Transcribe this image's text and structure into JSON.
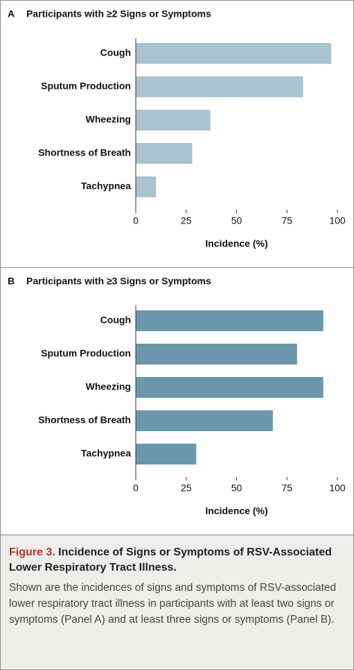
{
  "chart_data": [
    {
      "type": "bar",
      "orientation": "horizontal",
      "label": "A",
      "title": "Participants with ≥2 Signs or Symptoms",
      "categories": [
        "Cough",
        "Sputum Production",
        "Wheezing",
        "Shortness of Breath",
        "Tachypnea"
      ],
      "values": [
        97,
        83,
        37,
        28,
        10
      ],
      "color": "#a9c3cf",
      "xlim": [
        0,
        100
      ],
      "xticks": [
        0,
        25,
        50,
        75,
        100
      ],
      "xlabel": "Incidence (%)"
    },
    {
      "type": "bar",
      "orientation": "horizontal",
      "label": "B",
      "title": "Participants with ≥3 Signs or Symptoms",
      "categories": [
        "Cough",
        "Sputum Production",
        "Wheezing",
        "Shortness of Breath",
        "Tachypnea"
      ],
      "values": [
        93,
        80,
        93,
        68,
        30
      ],
      "color": "#6a97ab",
      "xlim": [
        0,
        100
      ],
      "xticks": [
        0,
        25,
        50,
        75,
        100
      ],
      "xlabel": "Incidence (%)"
    }
  ],
  "caption": {
    "label": "Figure 3.",
    "title": "Incidence of Signs or Symptoms of RSV-Associated Lower Respiratory Tract Illness.",
    "text": "Shown are the incidences of signs and symptoms of RSV-associated lower respiratory tract illness in participants with at least two signs or symptoms (Panel A) and at least three signs or symptoms (Panel B)."
  }
}
